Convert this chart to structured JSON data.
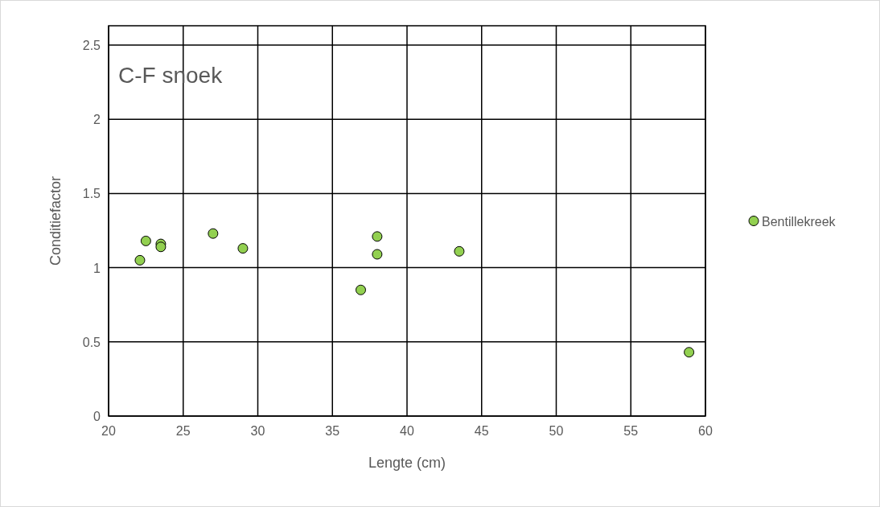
{
  "chart_data": {
    "type": "scatter",
    "title": "C-F snoek",
    "xlabel": "Lengte (cm)",
    "ylabel": "Conditiefactor",
    "xlim": [
      20,
      60
    ],
    "xticks": [
      20,
      25,
      30,
      35,
      40,
      45,
      50,
      55,
      60
    ],
    "ylim": [
      0,
      2.63
    ],
    "yticks": [
      0,
      0.5,
      1,
      1.5,
      2,
      2.5
    ],
    "grid": true,
    "legend": "right",
    "marker": "circle",
    "series": [
      {
        "name": "Bentillekreek",
        "color": "#92d050",
        "x": [
          22.1,
          22.5,
          23.5,
          23.5,
          27,
          29,
          36.9,
          38,
          38,
          43.5,
          58.9
        ],
        "values": [
          1.05,
          1.18,
          1.16,
          1.14,
          1.23,
          1.13,
          0.85,
          1.21,
          1.09,
          1.11,
          0.43
        ]
      }
    ]
  }
}
